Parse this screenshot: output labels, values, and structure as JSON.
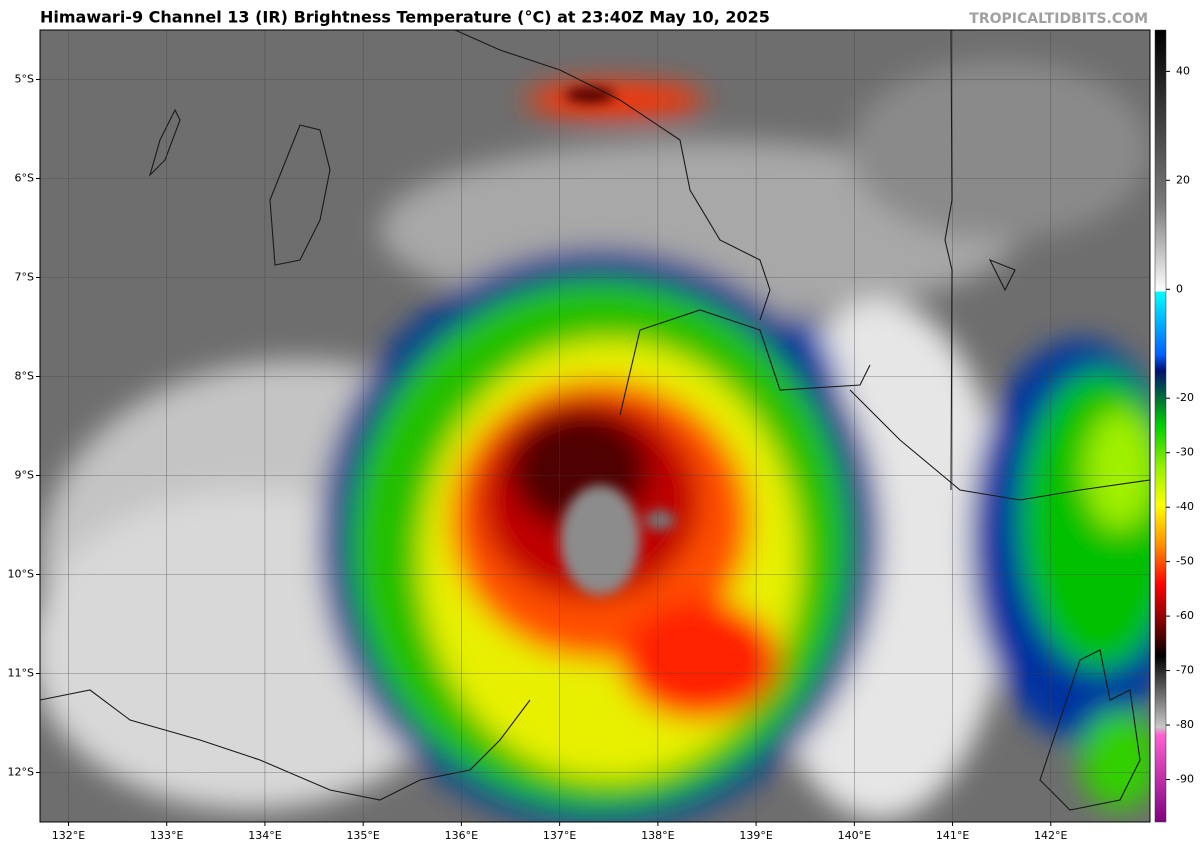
{
  "title": "Himawari-9 Channel 13 (IR) Brightness Temperature (°C) at 23:40Z May 10, 2025",
  "watermark": "TROPICALTIDBITS.COM",
  "map": {
    "xlim": [
      131.71,
      143.01
    ],
    "ylim": [
      -12.5,
      -4.5
    ],
    "xticks": [
      {
        "value": 132,
        "label": "132°E"
      },
      {
        "value": 133,
        "label": "133°E"
      },
      {
        "value": 134,
        "label": "134°E"
      },
      {
        "value": 135,
        "label": "135°E"
      },
      {
        "value": 136,
        "label": "136°E"
      },
      {
        "value": 137,
        "label": "137°E"
      },
      {
        "value": 138,
        "label": "138°E"
      },
      {
        "value": 139,
        "label": "139°E"
      },
      {
        "value": 140,
        "label": "140°E"
      },
      {
        "value": 141,
        "label": "141°E"
      },
      {
        "value": 142,
        "label": "142°E"
      }
    ],
    "yticks": [
      {
        "value": -5,
        "label": "5°S"
      },
      {
        "value": -6,
        "label": "6°S"
      },
      {
        "value": -7,
        "label": "7°S"
      },
      {
        "value": -8,
        "label": "8°S"
      },
      {
        "value": -9,
        "label": "9°S"
      },
      {
        "value": -10,
        "label": "10°S"
      },
      {
        "value": -11,
        "label": "11°S"
      },
      {
        "value": -12,
        "label": "12°S"
      }
    ]
  },
  "colorbar": {
    "lim": [
      -97.8,
      47.6
    ],
    "ticks": [
      40,
      20,
      0,
      -20,
      -30,
      -40,
      -50,
      -60,
      -70,
      -80,
      -90
    ]
  }
}
